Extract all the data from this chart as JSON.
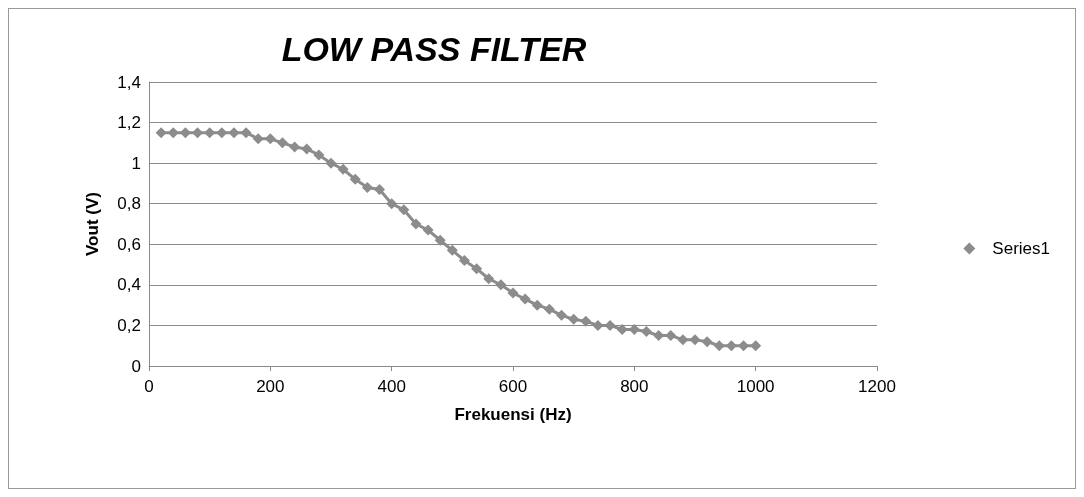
{
  "chart_data": {
    "type": "line",
    "title": "LOW PASS FILTER",
    "xlabel": "Frekuensi (Hz)",
    "ylabel": "Vout (V)",
    "x": [
      20,
      40,
      60,
      80,
      100,
      120,
      140,
      160,
      180,
      200,
      220,
      240,
      260,
      280,
      300,
      320,
      340,
      360,
      380,
      400,
      420,
      440,
      460,
      480,
      500,
      520,
      540,
      560,
      580,
      600,
      620,
      640,
      660,
      680,
      700,
      720,
      740,
      760,
      780,
      800,
      820,
      840,
      860,
      880,
      900,
      920,
      940,
      960,
      980,
      1000
    ],
    "series": [
      {
        "name": "Series1",
        "color": "#8c8c8c",
        "values": [
          1.15,
          1.15,
          1.15,
          1.15,
          1.15,
          1.15,
          1.15,
          1.15,
          1.12,
          1.12,
          1.1,
          1.08,
          1.07,
          1.04,
          1.0,
          0.97,
          0.92,
          0.88,
          0.87,
          0.8,
          0.77,
          0.7,
          0.67,
          0.62,
          0.57,
          0.52,
          0.48,
          0.43,
          0.4,
          0.36,
          0.33,
          0.3,
          0.28,
          0.25,
          0.23,
          0.22,
          0.2,
          0.2,
          0.18,
          0.18,
          0.17,
          0.15,
          0.15,
          0.13,
          0.13,
          0.12,
          0.1,
          0.1,
          0.1,
          0.1
        ]
      }
    ],
    "xlim": [
      0,
      1200
    ],
    "xticks": [
      0,
      200,
      400,
      600,
      800,
      1000,
      1200
    ],
    "ylim": [
      0,
      1.4
    ],
    "yticks": [
      0,
      {
        "value": 0.2,
        "label": "0,2"
      },
      {
        "value": 0.4,
        "label": "0,4"
      },
      {
        "value": 0.6,
        "label": "0,6"
      },
      {
        "value": 0.8,
        "label": "0,8"
      },
      1,
      {
        "value": 1.2,
        "label": "1,2"
      },
      {
        "value": 1.4,
        "label": "1,4"
      }
    ],
    "grid": "y",
    "legend": "right",
    "marker": "diamond",
    "line_style": "solid"
  }
}
